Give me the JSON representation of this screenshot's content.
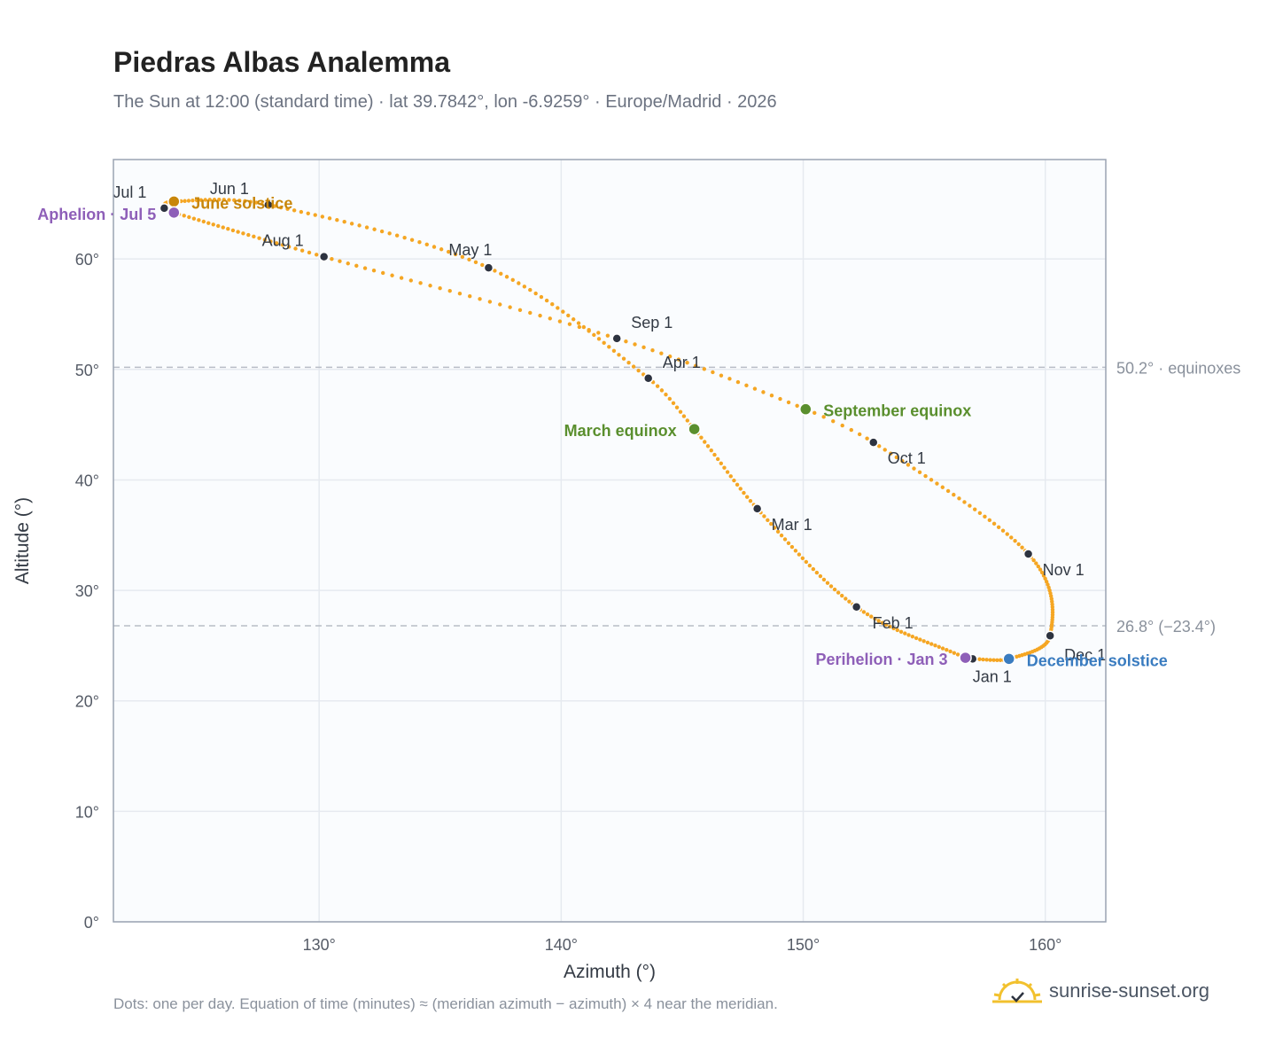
{
  "header": {
    "title": "Piedras Albas Analemma",
    "subtitle": "The Sun at 12:00 (standard time) · lat 39.7842°, lon -6.9259° · Europe/Madrid · 2026"
  },
  "footer": {
    "note": "Dots: one per day. Equation of time (minutes) ≈ (meridian azimuth − azimuth) × 4 near the meridian.",
    "brand": "sunrise-sunset.org"
  },
  "colors": {
    "curve": "#f5a623",
    "month_dot": "#2d3340",
    "equinox": "#5a8f2e",
    "june_solstice": "#c8860a",
    "december_solstice": "#3a7cc0",
    "apsis": "#8e5fb8",
    "plot_bg": "#fafcfe",
    "grid": "#e6eaf0",
    "ref_line": "#b8bdc6",
    "frame": "#9aa3b2"
  },
  "chart_data": {
    "type": "scatter",
    "xlabel": "Azimuth (°)",
    "ylabel": "Altitude (°)",
    "xlim": [
      121.5,
      162.5
    ],
    "ylim": [
      0,
      69
    ],
    "x_ticks": [
      130,
      140,
      150,
      160
    ],
    "x_tick_labels": [
      "130°",
      "140°",
      "150°",
      "160°"
    ],
    "y_ticks": [
      0,
      10,
      20,
      30,
      40,
      50,
      60
    ],
    "y_tick_labels": [
      "0°",
      "10°",
      "20°",
      "30°",
      "40°",
      "50°",
      "60°"
    ],
    "grid": true,
    "reference_lines": [
      {
        "y": 50.2,
        "label": "50.2° · equinoxes"
      },
      {
        "y": 26.8,
        "label": "26.8° (−23.4°)"
      }
    ],
    "month_markers": [
      {
        "label": "Jan 1",
        "azimuth": 157.0,
        "altitude": 23.8
      },
      {
        "label": "Feb 1",
        "azimuth": 152.2,
        "altitude": 28.5
      },
      {
        "label": "Mar 1",
        "azimuth": 148.1,
        "altitude": 37.4
      },
      {
        "label": "Apr 1",
        "azimuth": 143.6,
        "altitude": 49.2
      },
      {
        "label": "May 1",
        "azimuth": 137.0,
        "altitude": 59.2
      },
      {
        "label": "Jun 1",
        "azimuth": 127.9,
        "altitude": 64.9
      },
      {
        "label": "Jul 1",
        "azimuth": 123.6,
        "altitude": 64.6
      },
      {
        "label": "Aug 1",
        "azimuth": 130.2,
        "altitude": 60.2
      },
      {
        "label": "Sep 1",
        "azimuth": 142.3,
        "altitude": 52.8
      },
      {
        "label": "Oct 1",
        "azimuth": 152.9,
        "altitude": 43.4
      },
      {
        "label": "Nov 1",
        "azimuth": 159.3,
        "altitude": 33.3
      },
      {
        "label": "Dec 1",
        "azimuth": 160.2,
        "altitude": 25.9
      }
    ],
    "events": [
      {
        "label": "March equinox",
        "azimuth": 145.5,
        "altitude": 44.6,
        "color_key": "equinox"
      },
      {
        "label": "June solstice",
        "azimuth": 124.0,
        "altitude": 65.2,
        "color_key": "june_solstice"
      },
      {
        "label": "September equinox",
        "azimuth": 150.1,
        "altitude": 46.4,
        "color_key": "equinox"
      },
      {
        "label": "December solstice",
        "azimuth": 158.5,
        "altitude": 23.8,
        "color_key": "december_solstice"
      },
      {
        "label": "Perihelion · Jan 3",
        "azimuth": 156.7,
        "altitude": 23.9,
        "color_key": "apsis"
      },
      {
        "label": "Aphelion · Jul 5",
        "azimuth": 124.0,
        "altitude": 64.2,
        "color_key": "apsis"
      }
    ]
  }
}
